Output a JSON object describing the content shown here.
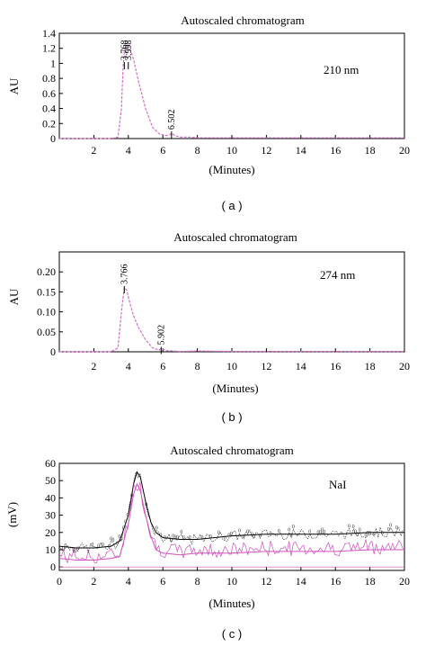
{
  "chart_data": [
    {
      "type": "line",
      "panel": "( a )",
      "title": "Autoscaled chromatogram",
      "xlabel": "(Minutes)",
      "ylabel": "AU",
      "annotation": "210 nm",
      "xlim": [
        0,
        20
      ],
      "ylim": [
        0,
        1.4
      ],
      "xticks": [
        "2",
        "4",
        "6",
        "8",
        "10",
        "12",
        "14",
        "16",
        "18",
        "20"
      ],
      "yticks": [
        "0",
        "0.2",
        "0.4",
        "0.6",
        "0.8",
        "1",
        "1.2",
        "1.4"
      ],
      "peak_labels": [
        {
          "x": 3.768,
          "label": "3.768"
        },
        {
          "x": 3.998,
          "label": "3.998"
        },
        {
          "x": 6.502,
          "label": "6.502"
        }
      ],
      "series": [
        {
          "color": "#d070c8",
          "x": [
            0,
            3.0,
            3.4,
            3.6,
            3.7,
            3.768,
            3.85,
            3.998,
            4.1,
            4.3,
            4.6,
            5.0,
            5.4,
            5.8,
            6.2,
            6.4,
            6.502,
            6.7,
            7.0,
            7.5,
            8.0,
            10.0,
            14.0,
            20.0
          ],
          "y": [
            0,
            0.0,
            0.02,
            0.4,
            0.95,
            1.15,
            1.22,
            1.25,
            1.2,
            1.05,
            0.75,
            0.4,
            0.15,
            0.06,
            0.04,
            0.05,
            0.07,
            0.04,
            0.02,
            0.02,
            0.01,
            0.01,
            0.01,
            0.01
          ]
        }
      ]
    },
    {
      "type": "line",
      "panel": "( b )",
      "title": "Autoscaled chromatogram",
      "xlabel": "(Minutes)",
      "ylabel": "AU",
      "annotation": "274 nm",
      "xlim": [
        0,
        20
      ],
      "ylim": [
        0,
        0.25
      ],
      "xticks": [
        "2",
        "4",
        "6",
        "8",
        "10",
        "12",
        "14",
        "16",
        "18",
        "20"
      ],
      "yticks": [
        "0",
        "0.05",
        "0.10",
        "0.15",
        "0.20"
      ],
      "peak_labels": [
        {
          "x": 3.766,
          "label": "3.766"
        },
        {
          "x": 5.902,
          "label": "5.902"
        }
      ],
      "series": [
        {
          "color": "#d070c8",
          "x": [
            0,
            3.0,
            3.4,
            3.6,
            3.766,
            3.9,
            4.1,
            4.3,
            4.6,
            5.0,
            5.4,
            5.8,
            5.902,
            6.2,
            6.6,
            7.0,
            8.0,
            10.0,
            14.0,
            20.0
          ],
          "y": [
            0,
            0.0,
            0.01,
            0.1,
            0.16,
            0.155,
            0.12,
            0.09,
            0.06,
            0.03,
            0.01,
            0.004,
            0.008,
            0.003,
            0.002,
            0.001,
            0.002,
            0.001,
            0.001,
            0.001
          ]
        }
      ]
    },
    {
      "type": "line",
      "panel": "( c )",
      "title": "Autoscaled chromatogram",
      "xlabel": "(Minutes)",
      "ylabel": "(mV)",
      "annotation": "NaI",
      "xlim": [
        0,
        20
      ],
      "ylim": [
        -2,
        60
      ],
      "xticks": [
        "0",
        "2",
        "4",
        "6",
        "8",
        "10",
        "12",
        "14",
        "16",
        "18",
        "20"
      ],
      "yticks": [
        "0",
        "10",
        "20",
        "30",
        "40",
        "50",
        "60"
      ],
      "series": [
        {
          "color": "#d050c0",
          "x": [
            0,
            1,
            2,
            3,
            3.5,
            4.0,
            4.3,
            4.5,
            4.7,
            5.0,
            5.3,
            5.6,
            6,
            7,
            8,
            10,
            12,
            14,
            16,
            18,
            20
          ],
          "y": [
            5,
            4,
            4,
            5,
            6,
            25,
            42,
            48,
            44,
            30,
            18,
            10,
            8,
            7,
            8,
            8,
            9,
            9,
            9,
            10,
            10
          ]
        },
        {
          "color": "#000000",
          "x": [
            0,
            1,
            2,
            3,
            3.5,
            4.0,
            4.3,
            4.5,
            4.7,
            5.0,
            5.3,
            5.6,
            6,
            7,
            8,
            10,
            12,
            14,
            16,
            18,
            20
          ],
          "y": [
            12,
            11,
            11,
            12,
            15,
            30,
            48,
            55,
            52,
            38,
            26,
            20,
            17,
            16,
            16,
            18,
            19,
            19,
            19,
            20,
            20
          ]
        }
      ]
    }
  ]
}
